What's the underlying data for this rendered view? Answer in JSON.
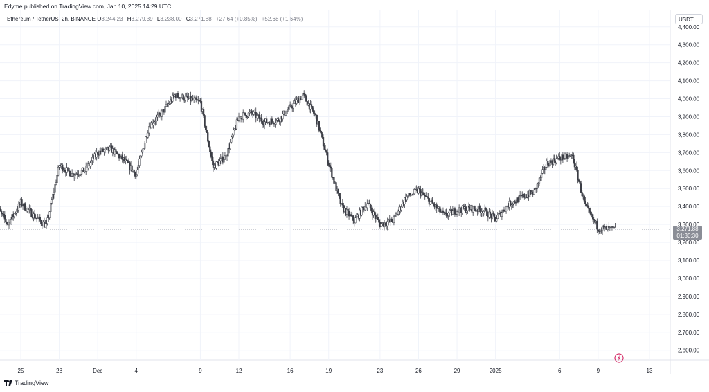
{
  "publisher": "Edyme published on TradingView.com, Jan 10, 2025 14:29 UTC",
  "legend": {
    "symbol": "Ethereum / TetherUS, 2h, BINANCE",
    "o_label": "O",
    "o_value": "3,244.23",
    "h_label": "H",
    "h_value": "3,279.39",
    "l_label": "L",
    "l_value": "3,238.00",
    "c_label": "C",
    "c_value": "3,271.88",
    "change": "+27.64 (+0.85%)",
    "change2": "+52.68 (+1.64%)"
  },
  "currency": "USDT",
  "price_tag": {
    "price": "3,271.88",
    "countdown": "01:30:30"
  },
  "footer": {
    "brand": "TradingView"
  },
  "colors": {
    "candle": "#3b3d45",
    "grid": "#f0f3fa",
    "axis_text": "#131722"
  },
  "chart_data": {
    "type": "line",
    "title": "",
    "xlabel": "",
    "ylabel": "",
    "y_axis_ticks": [
      "4,400.00",
      "4,300.00",
      "4,200.00",
      "4,100.00",
      "4,000.00",
      "3,900.00",
      "3,800.00",
      "3,700.00",
      "3,600.00",
      "3,500.00",
      "3,400.00",
      "3,300.00",
      "3,200.00",
      "3,100.00",
      "3,000.00",
      "2,900.00",
      "2,800.00",
      "2,700.00",
      "2,600.00"
    ],
    "y_tick_values": [
      4400,
      4300,
      4200,
      4100,
      4000,
      3900,
      3800,
      3700,
      3600,
      3500,
      3400,
      3300,
      3200,
      3100,
      3000,
      2900,
      2800,
      2700,
      2600
    ],
    "ylim": [
      2545,
      4480
    ],
    "x_axis_ticks": [
      {
        "label": "25",
        "date": "2024-11-25"
      },
      {
        "label": "28",
        "date": "2024-11-28"
      },
      {
        "label": "Dec",
        "date": "2024-12-01"
      },
      {
        "label": "4",
        "date": "2024-12-04"
      },
      {
        "label": "9",
        "date": "2024-12-09"
      },
      {
        "label": "12",
        "date": "2024-12-12"
      },
      {
        "label": "16",
        "date": "2024-12-16"
      },
      {
        "label": "19",
        "date": "2024-12-19"
      },
      {
        "label": "23",
        "date": "2024-12-23"
      },
      {
        "label": "26",
        "date": "2024-12-26"
      },
      {
        "label": "29",
        "date": "2024-12-29"
      },
      {
        "label": "2025",
        "date": "2025-01-01"
      },
      {
        "label": "6",
        "date": "2025-01-06"
      },
      {
        "label": "9",
        "date": "2025-01-09"
      },
      {
        "label": "13",
        "date": "2025-01-13"
      }
    ],
    "x": [
      "2024-11-23",
      "2024-11-24",
      "2024-11-25",
      "2024-11-26",
      "2024-11-27",
      "2024-11-28",
      "2024-11-29",
      "2024-11-30",
      "2024-12-01",
      "2024-12-02",
      "2024-12-03",
      "2024-12-04",
      "2024-12-05",
      "2024-12-06",
      "2024-12-07",
      "2024-12-08",
      "2024-12-09",
      "2024-12-10",
      "2024-12-11",
      "2024-12-12",
      "2024-12-13",
      "2024-12-14",
      "2024-12-15",
      "2024-12-16",
      "2024-12-17",
      "2024-12-18",
      "2024-12-19",
      "2024-12-20",
      "2024-12-21",
      "2024-12-22",
      "2024-12-23",
      "2024-12-24",
      "2024-12-25",
      "2024-12-26",
      "2024-12-27",
      "2024-12-28",
      "2024-12-29",
      "2024-12-30",
      "2024-12-31",
      "2025-01-01",
      "2025-01-02",
      "2025-01-03",
      "2025-01-04",
      "2025-01-05",
      "2025-01-06",
      "2025-01-07",
      "2025-01-08",
      "2025-01-09",
      "2025-01-10"
    ],
    "series": [
      {
        "values": [
          3410,
          3300,
          3420,
          3350,
          3290,
          3630,
          3580,
          3600,
          3700,
          3720,
          3660,
          3580,
          3850,
          3920,
          4020,
          4000,
          3980,
          3620,
          3680,
          3900,
          3920,
          3870,
          3880,
          3950,
          4020,
          3900,
          3640,
          3400,
          3320,
          3420,
          3300,
          3320,
          3450,
          3490,
          3420,
          3350,
          3380,
          3390,
          3380,
          3330,
          3410,
          3450,
          3480,
          3640,
          3670,
          3680,
          3400,
          3280,
          3271.88
        ]
      }
    ]
  }
}
